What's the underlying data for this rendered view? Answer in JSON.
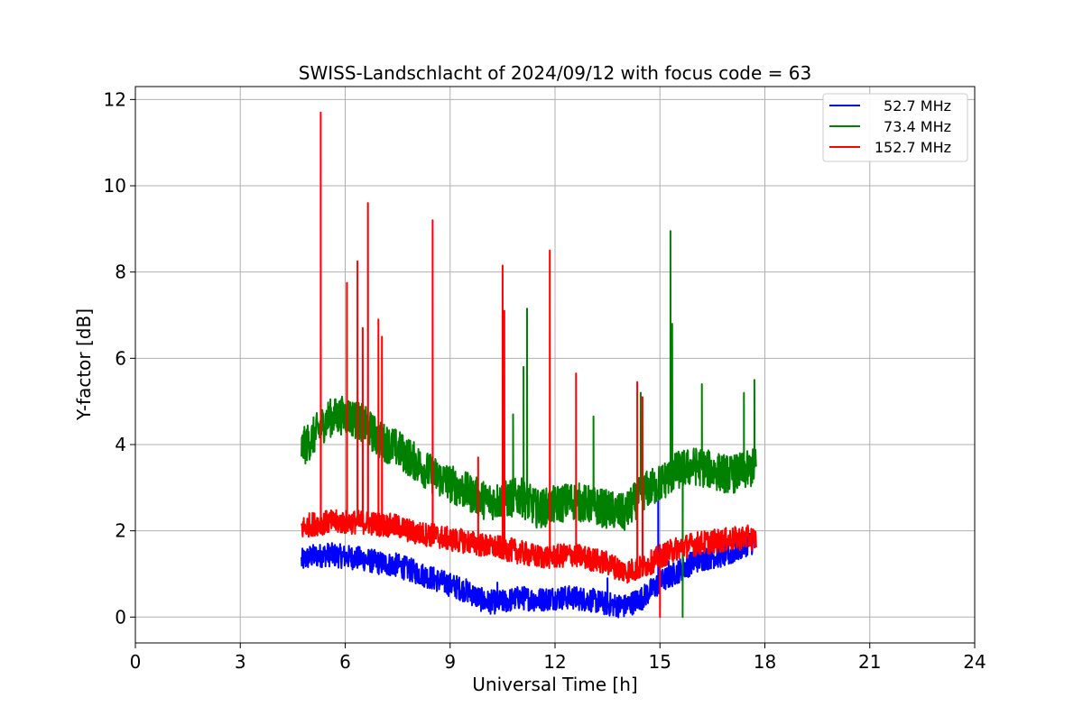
{
  "chart_data": {
    "type": "line",
    "title": "SWISS-Landschlacht of 2024/09/12 with focus code = 63",
    "xlabel": "Universal Time [h]",
    "ylabel": "Y-factor [dB]",
    "xlim": [
      0,
      24
    ],
    "ylim": [
      -0.6,
      12.3
    ],
    "xticks": [
      0,
      3,
      6,
      9,
      12,
      15,
      18,
      21,
      24
    ],
    "xtick_labels": [
      "0",
      "3",
      "6",
      "9",
      "12",
      "15",
      "18",
      "21",
      "24"
    ],
    "yticks": [
      0,
      2,
      4,
      6,
      8,
      10,
      12
    ],
    "ytick_labels": [
      "0",
      "2",
      "4",
      "6",
      "8",
      "10",
      "12"
    ],
    "grid": true,
    "legend_position": "top-right",
    "series": [
      {
        "name": "52.7 MHz",
        "color": "#0000ff",
        "x": [
          4.75,
          5.0,
          5.5,
          6.0,
          6.5,
          7.0,
          7.5,
          8.0,
          8.5,
          9.0,
          9.5,
          10.0,
          10.5,
          11.0,
          11.5,
          12.0,
          12.5,
          13.0,
          13.5,
          14.0,
          14.5,
          15.0,
          15.5,
          16.0,
          16.5,
          17.0,
          17.5,
          17.75
        ],
        "y": [
          1.3,
          1.4,
          1.45,
          1.4,
          1.35,
          1.25,
          1.2,
          1.05,
          0.9,
          0.75,
          0.6,
          0.35,
          0.35,
          0.45,
          0.4,
          0.45,
          0.45,
          0.4,
          0.3,
          0.25,
          0.45,
          0.8,
          1.05,
          1.3,
          1.4,
          1.45,
          1.7,
          1.75
        ],
        "spikes": [
          [
            14.95,
            2.9
          ],
          [
            15.25,
            1.3
          ],
          [
            13.5,
            0.9
          ],
          [
            10.35,
            0.8
          ]
        ]
      },
      {
        "name": "73.4 MHz",
        "color": "#008000",
        "x": [
          4.75,
          5.0,
          5.5,
          6.0,
          6.5,
          7.0,
          7.5,
          8.0,
          8.5,
          9.0,
          9.5,
          10.0,
          10.5,
          11.0,
          11.5,
          12.0,
          12.5,
          13.0,
          13.5,
          14.0,
          14.5,
          15.0,
          15.5,
          16.0,
          16.5,
          17.0,
          17.5,
          17.75
        ],
        "y": [
          3.9,
          4.1,
          4.6,
          4.7,
          4.5,
          4.1,
          3.9,
          3.6,
          3.3,
          3.1,
          2.9,
          2.7,
          2.7,
          2.8,
          2.5,
          2.6,
          2.7,
          2.6,
          2.5,
          2.4,
          2.9,
          3.1,
          3.4,
          3.5,
          3.4,
          3.3,
          3.4,
          3.5
        ],
        "spikes": [
          [
            15.3,
            8.95
          ],
          [
            15.35,
            6.8
          ],
          [
            11.2,
            7.15
          ],
          [
            11.1,
            5.8
          ],
          [
            10.8,
            4.7
          ],
          [
            13.1,
            4.65
          ],
          [
            15.65,
            0.0
          ],
          [
            14.45,
            5.2
          ],
          [
            16.2,
            5.4
          ],
          [
            17.4,
            5.2
          ],
          [
            17.7,
            5.5
          ]
        ]
      },
      {
        "name": "152.7 MHz",
        "color": "#ff0000",
        "x": [
          4.75,
          5.0,
          5.5,
          6.0,
          6.5,
          7.0,
          7.5,
          8.0,
          8.5,
          9.0,
          9.5,
          10.0,
          10.5,
          11.0,
          11.5,
          12.0,
          12.5,
          13.0,
          13.5,
          14.0,
          14.5,
          15.0,
          15.5,
          16.0,
          16.5,
          17.0,
          17.5,
          17.75
        ],
        "y": [
          2.05,
          2.15,
          2.2,
          2.2,
          2.2,
          2.15,
          2.1,
          1.95,
          1.9,
          1.8,
          1.75,
          1.65,
          1.6,
          1.5,
          1.4,
          1.4,
          1.45,
          1.35,
          1.25,
          1.05,
          1.15,
          1.4,
          1.6,
          1.7,
          1.75,
          1.8,
          1.85,
          1.8
        ],
        "spikes": [
          [
            5.3,
            11.7
          ],
          [
            6.05,
            7.75
          ],
          [
            6.35,
            8.25
          ],
          [
            6.5,
            6.7
          ],
          [
            6.65,
            9.6
          ],
          [
            6.95,
            6.9
          ],
          [
            7.05,
            6.5
          ],
          [
            8.5,
            9.2
          ],
          [
            10.5,
            8.15
          ],
          [
            10.55,
            7.1
          ],
          [
            11.85,
            8.5
          ],
          [
            12.6,
            5.65
          ],
          [
            14.35,
            5.45
          ],
          [
            14.5,
            5.1
          ],
          [
            9.8,
            3.7
          ],
          [
            15.0,
            0.0
          ]
        ]
      }
    ]
  }
}
